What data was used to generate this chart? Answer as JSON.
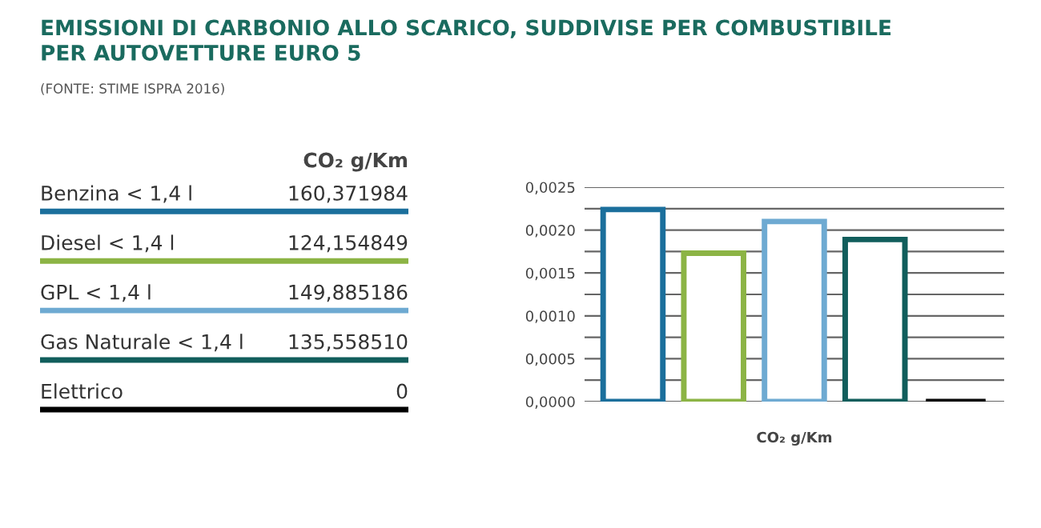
{
  "chart_data": [
    {
      "type": "other",
      "title": "EMISSIONI DI CARBONIO ALLO SCARICO, SUDDIVISE PER COMBUSTIBILE\nPER AUTOVETTURE EURO 5",
      "subtitle": "(FONTE: STIME ISPRA 2016)",
      "ylabel": "CO₂ g/Km",
      "categories": [
        "Benzina < 1,4 l",
        "Diesel < 1,4 l",
        "GPL < 1,4 l",
        "Gas Naturale < 1,4 l",
        "Elettrico"
      ],
      "value_labels": [
        "160,371984",
        "124,154849",
        "149,885186",
        "135,558510",
        "0"
      ],
      "colors": [
        "#1b6f9c",
        "#8cb445",
        "#6eaad2",
        "#115e5c",
        "#000000"
      ]
    },
    {
      "type": "bar",
      "xlabel": "CO₂ g/Km",
      "categories": [
        null,
        null,
        null,
        null,
        null
      ],
      "values": [
        0.00224,
        0.00173,
        0.0021,
        0.00189,
        0
      ],
      "colors": [
        "#1b6f9c",
        "#8cb445",
        "#6eaad2",
        "#115e5c",
        "#000000"
      ],
      "ylim": [
        0,
        0.0025
      ],
      "yticks": [
        {
          "value": 0,
          "label": "0,0000"
        },
        {
          "value": 0.00025,
          "label": null
        },
        {
          "value": 0.0005,
          "label": "0,0005"
        },
        {
          "value": 0.00075,
          "label": null
        },
        {
          "value": 0.001,
          "label": "0,0010"
        },
        {
          "value": 0.00125,
          "label": null
        },
        {
          "value": 0.0015,
          "label": "0,0015"
        },
        {
          "value": 0.00175,
          "label": null
        },
        {
          "value": 0.002,
          "label": "0,0020"
        },
        {
          "value": 0.00225,
          "label": null
        },
        {
          "value": 0.0025,
          "label": "0,0025"
        }
      ],
      "grid": "y"
    }
  ]
}
